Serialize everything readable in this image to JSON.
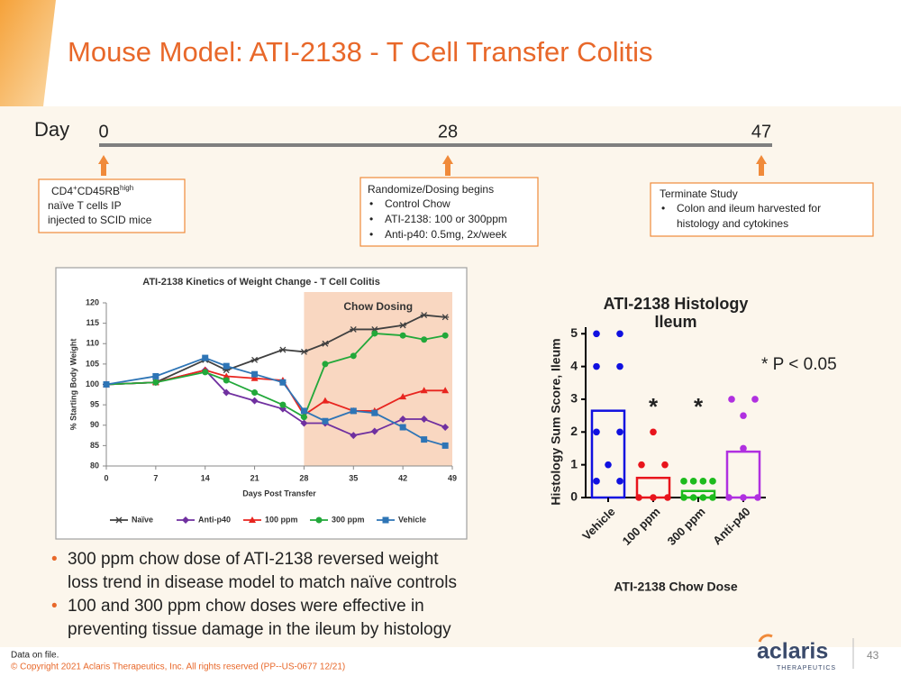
{
  "header": {
    "title": "Mouse Model: ATI-2138 - T Cell Transfer Colitis"
  },
  "timeline": {
    "label": "Day",
    "days": [
      0,
      28,
      47
    ]
  },
  "boxes": {
    "b1": {
      "cell": [
        "CD4",
        "+",
        "CD45RB",
        "high"
      ],
      "lines": [
        "naïve T cells IP",
        "injected to SCID mice"
      ]
    },
    "b2": {
      "heading": "Randomize/Dosing begins",
      "items": [
        "Control Chow",
        "ATI-2138: 100 or 300ppm",
        "Anti-p40: 0.5mg, 2x/week"
      ]
    },
    "b3": {
      "heading": "Terminate Study",
      "items": [
        [
          "Colon and ileum harvested for",
          "histology and cytokines"
        ]
      ]
    }
  },
  "chart_data": [
    {
      "type": "line",
      "title": "ATI-2138 Kinetics of Weight Change - T Cell Colitis",
      "x_label": "Days Post Transfer",
      "y_label": "% Starting Body Weight",
      "shade": {
        "from": 28,
        "to": 49,
        "label": "Chow Dosing",
        "color": "#f8cdb2"
      },
      "x": [
        0,
        7,
        14,
        17,
        21,
        25,
        28,
        31,
        35,
        38,
        42,
        45,
        48
      ],
      "series": [
        {
          "name": "Naïve",
          "color": "#404040",
          "marker": "star",
          "values": [
            100,
            100.5,
            106,
            103.5,
            106,
            108.5,
            108,
            110,
            113.5,
            113.5,
            114.5,
            117,
            116.5
          ]
        },
        {
          "name": "Anti-p40",
          "color": "#7030a0",
          "marker": "diamond",
          "values": [
            100,
            100.5,
            103.5,
            98,
            96,
            94,
            90.5,
            90.5,
            87.5,
            88.5,
            91.5,
            91.5,
            89.5
          ]
        },
        {
          "name": "100 ppm",
          "color": "#e8251f",
          "marker": "triangle",
          "values": [
            100,
            100.5,
            103.5,
            102,
            101.5,
            101,
            92.5,
            96,
            93.5,
            93.5,
            97,
            98.5,
            98.5
          ]
        },
        {
          "name": "300 ppm",
          "color": "#22a83a",
          "marker": "circle",
          "values": [
            100,
            100.5,
            103,
            101,
            98,
            95,
            92,
            105,
            107,
            112.5,
            112,
            111,
            112
          ]
        },
        {
          "name": "Vehicle",
          "color": "#2e75b6",
          "marker": "square",
          "values": [
            100,
            102,
            106.5,
            104.5,
            102.5,
            100.5,
            93.5,
            91,
            93.5,
            93,
            89.5,
            86.5,
            85
          ]
        }
      ],
      "xlim": [
        0,
        49
      ],
      "xticks": [
        0,
        7,
        14,
        21,
        28,
        35,
        42,
        49
      ],
      "ylim": [
        80,
        120
      ],
      "yticks": [
        80,
        85,
        90,
        95,
        100,
        105,
        110,
        115,
        120
      ],
      "grid": false
    },
    {
      "type": "bar",
      "title": [
        "ATI-2138 Histology",
        "Ileum"
      ],
      "x_label": "ATI-2138 Chow Dose",
      "y_label": "Histology Sum Score, Ileum",
      "categories": [
        "Vehicle",
        "100 ppm",
        "300 ppm",
        "Anti-p40"
      ],
      "values": [
        2.65,
        0.6,
        0.2,
        1.4
      ],
      "colors": [
        "#1010e0",
        "#e8141c",
        "#1dbb1d",
        "#b030e0"
      ],
      "points": [
        [
          5,
          5,
          4,
          4,
          2,
          2,
          1,
          0.5,
          0.5
        ],
        [
          2,
          1,
          1,
          0,
          0,
          0
        ],
        [
          0.5,
          0.5,
          0.5,
          0.5,
          0,
          0,
          0,
          0
        ],
        [
          3,
          3,
          2.5,
          1.5,
          0,
          0,
          0
        ]
      ],
      "annotations": [
        {
          "category": "100 ppm",
          "text": "*"
        },
        {
          "category": "300 ppm",
          "text": "*"
        }
      ],
      "note": "* P < 0.05",
      "ylim": [
        0,
        5.2
      ],
      "yticks": [
        0,
        1,
        2,
        3,
        4,
        5
      ],
      "grid": false
    }
  ],
  "bullets": [
    [
      "300 ppm chow dose of ATI-2138 reversed weight",
      "loss trend in disease model to match naïve controls"
    ],
    [
      "100 and 300 ppm chow doses were effective in",
      "preventing tissue damage in the ileum by histology"
    ]
  ],
  "footer": {
    "note": "Data on file.",
    "copyright": "© Copyright 2021 Aclaris Therapeutics, Inc. All rights reserved (PP--US-0677 12/21)",
    "page": "43",
    "logo": "aclaris",
    "logo_sub": "THERAPEUTICS"
  }
}
